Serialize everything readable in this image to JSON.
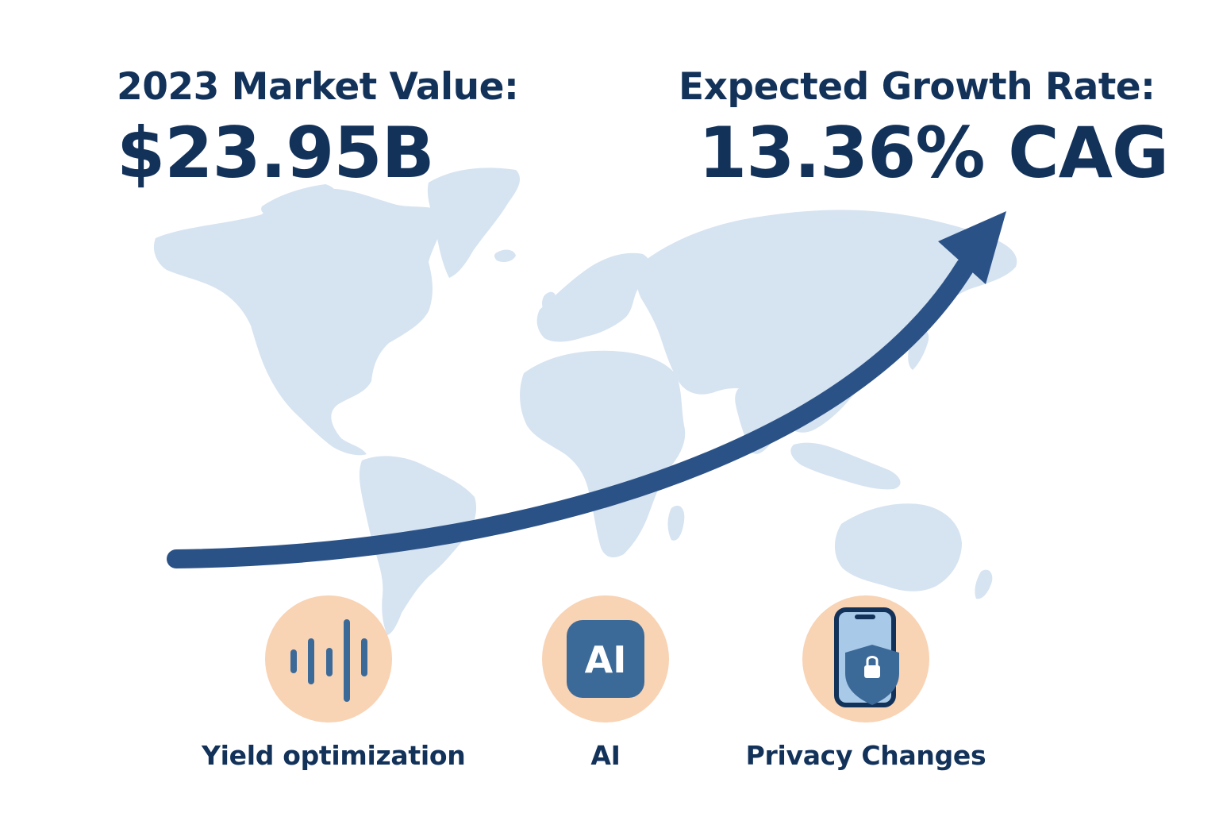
{
  "market": {
    "label": "2023 Market Value:",
    "value": "$23.95B"
  },
  "growth": {
    "label": "Expected Growth Rate:",
    "value": "13.36% CAG"
  },
  "drivers": [
    {
      "label": "Yield optimization",
      "icon": "sound-bars-icon"
    },
    {
      "label": "AI",
      "icon": "ai-chip-icon",
      "icon_text": "AI"
    },
    {
      "label": "Privacy Changes",
      "icon": "phone-shield-lock-icon"
    }
  ],
  "colors": {
    "text": "#13325a",
    "arrow": "#2b5287",
    "map": "#d6e3f1",
    "icon_circle": "#f8d3b4",
    "icon_fill": "#3c6a98"
  }
}
